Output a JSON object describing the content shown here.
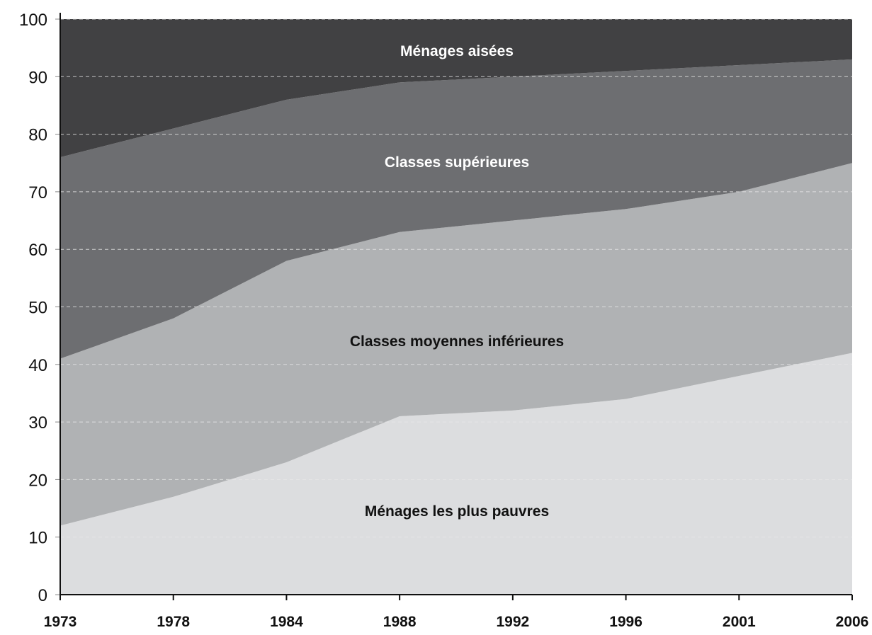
{
  "chart_data": {
    "type": "area",
    "stacked": true,
    "categories": [
      "1973",
      "1978",
      "1984",
      "1988",
      "1992",
      "1996",
      "2001",
      "2006"
    ],
    "series": [
      {
        "name": "Ménages les plus pauvres",
        "values": [
          12,
          17,
          23,
          31,
          32,
          34,
          38,
          42
        ],
        "color": "#dcdddf",
        "label_color": "#111111"
      },
      {
        "name": "Classes moyennes inférieures",
        "values": [
          29,
          31,
          35,
          32,
          33,
          33,
          32,
          33
        ],
        "color": "#b0b2b4",
        "label_color": "#111111"
      },
      {
        "name": "Classes supérieures",
        "values": [
          35,
          33,
          28,
          26,
          25,
          24,
          22,
          18
        ],
        "color": "#6d6e71",
        "label_color": "#ffffff"
      },
      {
        "name": "Ménages aisées",
        "values": [
          24,
          19,
          14,
          11,
          10,
          9,
          8,
          7
        ],
        "color": "#414143",
        "label_color": "#ffffff"
      }
    ],
    "ylim": [
      0,
      100
    ],
    "yticks": [
      0,
      10,
      20,
      30,
      40,
      50,
      60,
      70,
      80,
      90,
      100
    ],
    "grid": true,
    "title": "",
    "xlabel": "",
    "ylabel": ""
  }
}
